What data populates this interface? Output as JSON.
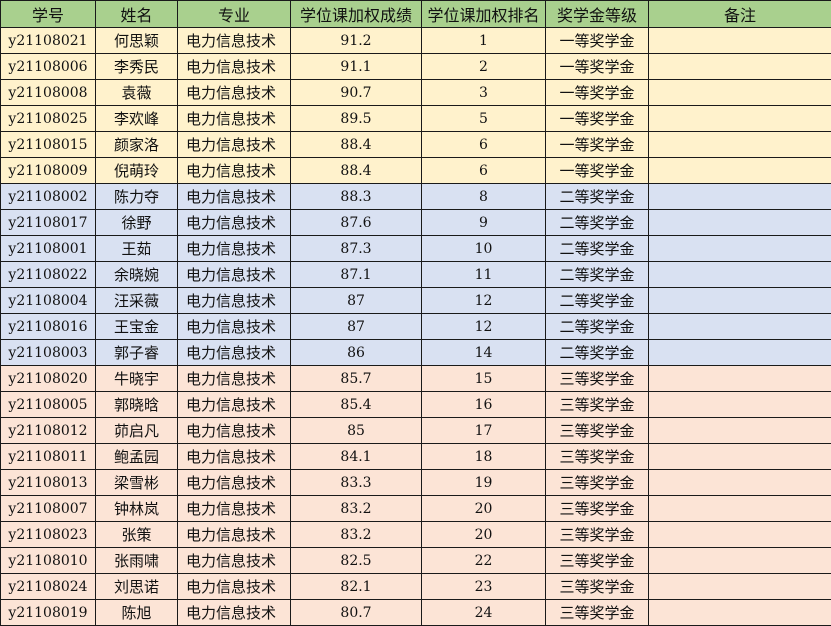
{
  "colors": {
    "header": "#a9d08e",
    "tier1": "#fff2cc",
    "tier2": "#d9e1f2",
    "tier3": "#fce4d6"
  },
  "headers": [
    "学号",
    "姓名",
    "专业",
    "学位课加权成绩",
    "学位课加权排名",
    "奖学金等级",
    "备注"
  ],
  "rows": [
    {
      "id": "y21108021",
      "name": "何思颖",
      "major": "电力信息技术",
      "score": "91.2",
      "rank": "1",
      "level": "一等奖学金",
      "note": "",
      "tier": 1
    },
    {
      "id": "y21108006",
      "name": "李秀民",
      "major": "电力信息技术",
      "score": "91.1",
      "rank": "2",
      "level": "一等奖学金",
      "note": "",
      "tier": 1
    },
    {
      "id": "y21108008",
      "name": "袁薇",
      "major": "电力信息技术",
      "score": "90.7",
      "rank": "3",
      "level": "一等奖学金",
      "note": "",
      "tier": 1
    },
    {
      "id": "y21108025",
      "name": "李欢峰",
      "major": "电力信息技术",
      "score": "89.5",
      "rank": "5",
      "level": "一等奖学金",
      "note": "",
      "tier": 1
    },
    {
      "id": "y21108015",
      "name": "颜家洛",
      "major": "电力信息技术",
      "score": "88.4",
      "rank": "6",
      "level": "一等奖学金",
      "note": "",
      "tier": 1
    },
    {
      "id": "y21108009",
      "name": "倪萌玲",
      "major": "电力信息技术",
      "score": "88.4",
      "rank": "6",
      "level": "一等奖学金",
      "note": "",
      "tier": 1
    },
    {
      "id": "y21108002",
      "name": "陈力夺",
      "major": "电力信息技术",
      "score": "88.3",
      "rank": "8",
      "level": "二等奖学金",
      "note": "",
      "tier": 2
    },
    {
      "id": "y21108017",
      "name": "徐野",
      "major": "电力信息技术",
      "score": "87.6",
      "rank": "9",
      "level": "二等奖学金",
      "note": "",
      "tier": 2
    },
    {
      "id": "y21108001",
      "name": "王茹",
      "major": "电力信息技术",
      "score": "87.3",
      "rank": "10",
      "level": "二等奖学金",
      "note": "",
      "tier": 2
    },
    {
      "id": "y21108022",
      "name": "余晓婉",
      "major": "电力信息技术",
      "score": "87.1",
      "rank": "11",
      "level": "二等奖学金",
      "note": "",
      "tier": 2
    },
    {
      "id": "y21108004",
      "name": "汪采薇",
      "major": "电力信息技术",
      "score": "87",
      "rank": "12",
      "level": "二等奖学金",
      "note": "",
      "tier": 2
    },
    {
      "id": "y21108016",
      "name": "王宝金",
      "major": "电力信息技术",
      "score": "87",
      "rank": "12",
      "level": "二等奖学金",
      "note": "",
      "tier": 2
    },
    {
      "id": "y21108003",
      "name": "郭子睿",
      "major": "电力信息技术",
      "score": "86",
      "rank": "14",
      "level": "二等奖学金",
      "note": "",
      "tier": 2
    },
    {
      "id": "y21108020",
      "name": "牛晓宇",
      "major": "电力信息技术",
      "score": "85.7",
      "rank": "15",
      "level": "三等奖学金",
      "note": "",
      "tier": 3
    },
    {
      "id": "y21108005",
      "name": "郭晓晗",
      "major": "电力信息技术",
      "score": "85.4",
      "rank": "16",
      "level": "三等奖学金",
      "note": "",
      "tier": 3
    },
    {
      "id": "y21108012",
      "name": "茆启凡",
      "major": "电力信息技术",
      "score": "85",
      "rank": "17",
      "level": "三等奖学金",
      "note": "",
      "tier": 3
    },
    {
      "id": "y21108011",
      "name": "鲍孟园",
      "major": "电力信息技术",
      "score": "84.1",
      "rank": "18",
      "level": "三等奖学金",
      "note": "",
      "tier": 3
    },
    {
      "id": "y21108013",
      "name": "梁雪彬",
      "major": "电力信息技术",
      "score": "83.3",
      "rank": "19",
      "level": "三等奖学金",
      "note": "",
      "tier": 3
    },
    {
      "id": "y21108007",
      "name": "钟林岚",
      "major": "电力信息技术",
      "score": "83.2",
      "rank": "20",
      "level": "三等奖学金",
      "note": "",
      "tier": 3
    },
    {
      "id": "y21108023",
      "name": "张策",
      "major": "电力信息技术",
      "score": "83.2",
      "rank": "20",
      "level": "三等奖学金",
      "note": "",
      "tier": 3
    },
    {
      "id": "y21108010",
      "name": "张雨啸",
      "major": "电力信息技术",
      "score": "82.5",
      "rank": "22",
      "level": "三等奖学金",
      "note": "",
      "tier": 3
    },
    {
      "id": "y21108024",
      "name": "刘思诺",
      "major": "电力信息技术",
      "score": "82.1",
      "rank": "23",
      "level": "三等奖学金",
      "note": "",
      "tier": 3
    },
    {
      "id": "y21108019",
      "name": "陈旭",
      "major": "电力信息技术",
      "score": "80.7",
      "rank": "24",
      "level": "三等奖学金",
      "note": "",
      "tier": 3
    }
  ]
}
